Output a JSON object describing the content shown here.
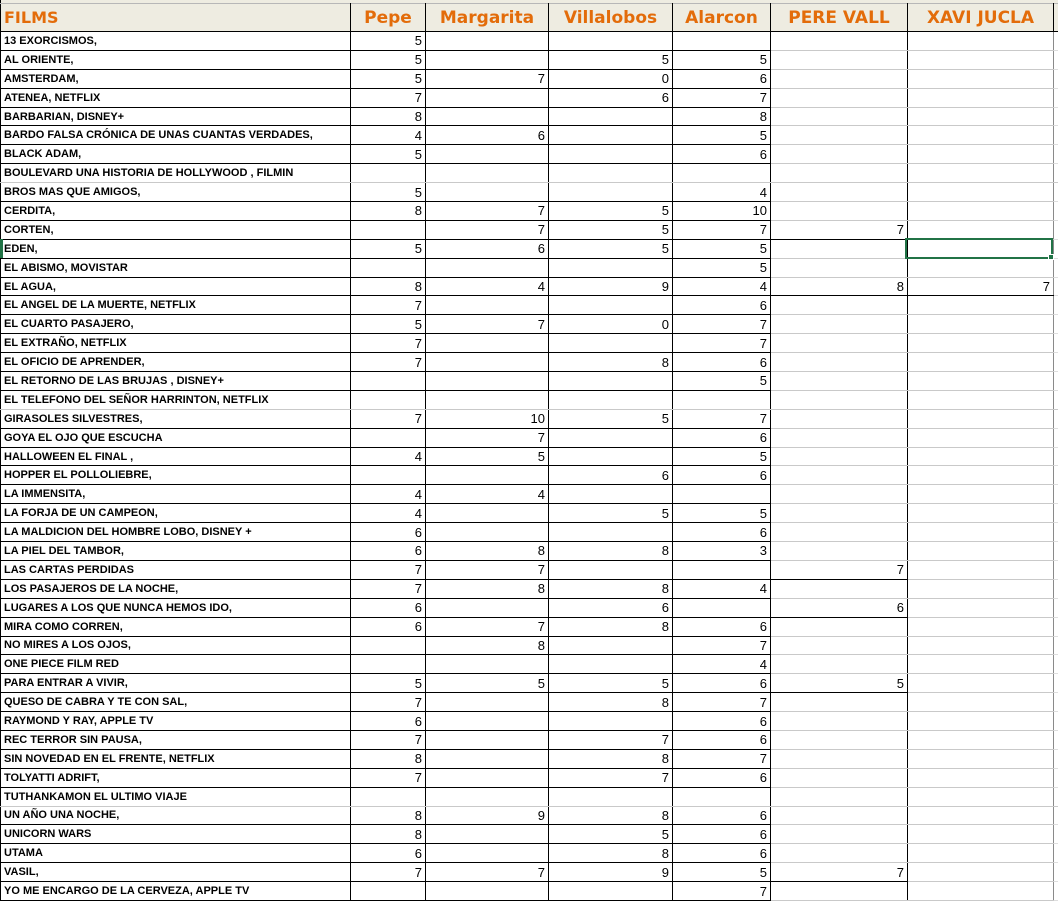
{
  "theme": {
    "header_bg": "#EEECE1",
    "header_text": "#E36C0A",
    "grid_dark": "#000000",
    "grid_light": "#C9C9C9",
    "selection_green": "#217346"
  },
  "table": {
    "columns": [
      "FILMS",
      "Pepe",
      "Margarita",
      "Villalobos",
      "Alarcon",
      "PERE VALL",
      "XAVI JUCLA"
    ],
    "rows": [
      {
        "film": "13 EXORCISMOS,",
        "ratings": [
          5,
          null,
          null,
          null,
          null,
          null
        ]
      },
      {
        "film": "AL ORIENTE,",
        "ratings": [
          5,
          null,
          5,
          5,
          null,
          null
        ]
      },
      {
        "film": "AMSTERDAM,",
        "ratings": [
          5,
          7,
          0,
          6,
          null,
          null
        ]
      },
      {
        "film": "ATENEA, NETFLIX",
        "ratings": [
          7,
          null,
          6,
          7,
          null,
          null
        ]
      },
      {
        "film": "BARBARIAN, DISNEY+",
        "ratings": [
          8,
          null,
          null,
          8,
          null,
          null
        ]
      },
      {
        "film": "BARDO FALSA CRÓNICA DE UNAS CUANTAS VERDADES,",
        "ratings": [
          4,
          6,
          null,
          5,
          null,
          null
        ]
      },
      {
        "film": "BLACK ADAM,",
        "ratings": [
          5,
          null,
          null,
          6,
          null,
          null
        ]
      },
      {
        "film": "BOULEVARD UNA HISTORIA DE HOLLYWOOD , FILMIN",
        "ratings": [
          null,
          null,
          null,
          null,
          null,
          null
        ]
      },
      {
        "film": "BROS MAS QUE AMIGOS,",
        "ratings": [
          5,
          null,
          null,
          4,
          null,
          null
        ]
      },
      {
        "film": "CERDITA,",
        "ratings": [
          8,
          7,
          5,
          10,
          null,
          null
        ]
      },
      {
        "film": "CORTEN,",
        "ratings": [
          null,
          7,
          5,
          7,
          7,
          null
        ]
      },
      {
        "film": "EDEN,",
        "ratings": [
          5,
          6,
          5,
          5,
          null,
          null
        ]
      },
      {
        "film": "EL ABISMO, MOVISTAR",
        "ratings": [
          null,
          null,
          null,
          5,
          null,
          null
        ]
      },
      {
        "film": "EL AGUA,",
        "ratings": [
          8,
          4,
          9,
          4,
          8,
          7
        ]
      },
      {
        "film": "EL ANGEL DE LA MUERTE, NETFLIX",
        "ratings": [
          7,
          null,
          null,
          6,
          null,
          null
        ]
      },
      {
        "film": "EL CUARTO PASAJERO,",
        "ratings": [
          5,
          7,
          0,
          7,
          null,
          null
        ]
      },
      {
        "film": "EL EXTRAÑO, NETFLIX",
        "ratings": [
          7,
          null,
          null,
          7,
          null,
          null
        ]
      },
      {
        "film": "EL OFICIO DE APRENDER,",
        "ratings": [
          7,
          null,
          8,
          6,
          null,
          null
        ]
      },
      {
        "film": "EL RETORNO DE LAS BRUJAS , DISNEY+",
        "ratings": [
          null,
          null,
          null,
          5,
          null,
          null
        ]
      },
      {
        "film": "EL TELEFONO DEL SEÑOR HARRINTON, NETFLIX",
        "ratings": [
          null,
          null,
          null,
          null,
          null,
          null
        ]
      },
      {
        "film": "GIRASOLES SILVESTRES,",
        "ratings": [
          7,
          10,
          5,
          7,
          null,
          null
        ]
      },
      {
        "film": "GOYA EL OJO QUE ESCUCHA",
        "ratings": [
          null,
          7,
          null,
          6,
          null,
          null
        ]
      },
      {
        "film": "HALLOWEEN EL FINAL ,",
        "ratings": [
          4,
          5,
          null,
          5,
          null,
          null
        ]
      },
      {
        "film": "HOPPER EL POLLOLIEBRE,",
        "ratings": [
          null,
          null,
          6,
          6,
          null,
          null
        ]
      },
      {
        "film": "LA  IMMENSITA,",
        "ratings": [
          4,
          4,
          null,
          null,
          null,
          null
        ]
      },
      {
        "film": "LA FORJA DE UN CAMPEON,",
        "ratings": [
          4,
          null,
          5,
          5,
          null,
          null
        ]
      },
      {
        "film": "LA MALDICION DEL HOMBRE LOBO, DISNEY +",
        "ratings": [
          6,
          null,
          null,
          6,
          null,
          null
        ]
      },
      {
        "film": "LA PIEL DEL TAMBOR,",
        "ratings": [
          6,
          8,
          8,
          3,
          null,
          null
        ]
      },
      {
        "film": "LAS CARTAS PERDIDAS",
        "ratings": [
          7,
          7,
          null,
          null,
          7,
          null
        ]
      },
      {
        "film": "LOS PASAJEROS DE LA NOCHE,",
        "ratings": [
          7,
          8,
          8,
          4,
          null,
          null
        ]
      },
      {
        "film": "LUGARES A LOS QUE NUNCA HEMOS IDO,",
        "ratings": [
          6,
          null,
          6,
          null,
          6,
          null
        ]
      },
      {
        "film": "MIRA COMO CORREN,",
        "ratings": [
          6,
          7,
          8,
          6,
          null,
          null
        ]
      },
      {
        "film": "NO MIRES A LOS OJOS,",
        "ratings": [
          null,
          8,
          null,
          7,
          null,
          null
        ]
      },
      {
        "film": "ONE PIECE FILM RED",
        "ratings": [
          null,
          null,
          null,
          4,
          null,
          null
        ]
      },
      {
        "film": "PARA ENTRAR A VIVIR,",
        "ratings": [
          5,
          5,
          5,
          6,
          5,
          null
        ]
      },
      {
        "film": "QUESO DE CABRA Y TE CON SAL,",
        "ratings": [
          7,
          null,
          8,
          7,
          null,
          null
        ]
      },
      {
        "film": "RAYMOND Y RAY, APPLE TV",
        "ratings": [
          6,
          null,
          null,
          6,
          null,
          null
        ]
      },
      {
        "film": "REC TERROR SIN PAUSA,",
        "ratings": [
          7,
          null,
          7,
          6,
          null,
          null
        ]
      },
      {
        "film": "SIN NOVEDAD EN EL FRENTE, NETFLIX",
        "ratings": [
          8,
          null,
          8,
          7,
          null,
          null
        ]
      },
      {
        "film": "TOLYATTI ADRIFT,",
        "ratings": [
          7,
          null,
          7,
          6,
          null,
          null
        ]
      },
      {
        "film": "TUTHANKAMON EL ULTIMO VIAJE",
        "ratings": [
          null,
          null,
          null,
          null,
          null,
          null
        ]
      },
      {
        "film": "UN AÑO UNA NOCHE,",
        "ratings": [
          8,
          9,
          8,
          6,
          null,
          null
        ]
      },
      {
        "film": "UNICORN WARS",
        "ratings": [
          8,
          null,
          5,
          6,
          null,
          null
        ]
      },
      {
        "film": "UTAMA",
        "ratings": [
          6,
          null,
          8,
          6,
          null,
          null
        ]
      },
      {
        "film": "VASIL,",
        "ratings": [
          7,
          7,
          9,
          5,
          7,
          null
        ]
      },
      {
        "film": "YO ME ENCARGO DE LA CERVEZA, APPLE TV",
        "ratings": [
          null,
          null,
          null,
          7,
          null,
          null
        ]
      }
    ]
  },
  "selection": {
    "film": "EDEN,",
    "column": "XAVI JUCLA",
    "column_index": 6,
    "value": ""
  }
}
